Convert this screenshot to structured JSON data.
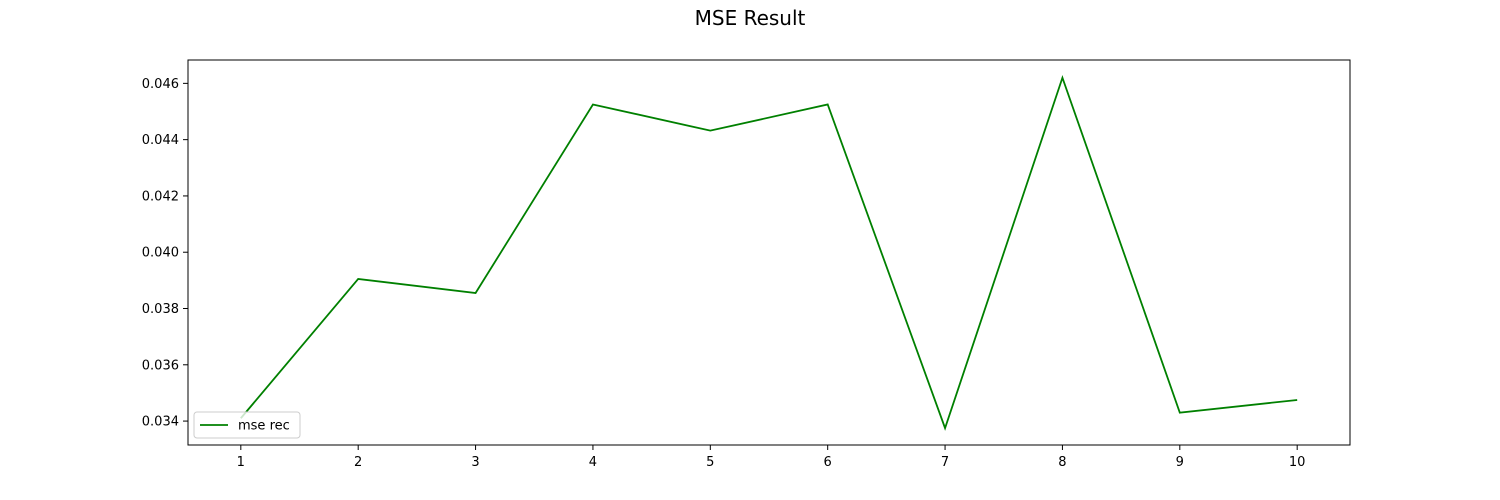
{
  "chart_data": {
    "type": "line",
    "title": "MSE Result",
    "xlabel": "",
    "ylabel": "",
    "x": [
      1,
      2,
      3,
      4,
      5,
      6,
      7,
      8,
      9,
      10
    ],
    "series": [
      {
        "name": "mse rec",
        "color": "#008000",
        "values": [
          0.0341,
          0.03905,
          0.03855,
          0.04525,
          0.04432,
          0.04525,
          0.03375,
          0.0462,
          0.0343,
          0.03475
        ]
      }
    ],
    "xticks": [
      "1",
      "2",
      "3",
      "4",
      "5",
      "6",
      "7",
      "8",
      "9",
      "10"
    ],
    "yticks": [
      "0.034",
      "0.036",
      "0.038",
      "0.040",
      "0.042",
      "0.044",
      "0.046"
    ],
    "ytick_values": [
      0.034,
      0.036,
      0.038,
      0.04,
      0.042,
      0.044,
      0.046
    ],
    "xlim": [
      0.55,
      10.45
    ],
    "ylim": [
      0.03315,
      0.04683
    ],
    "grid": false,
    "legend_position": "lower-left"
  }
}
